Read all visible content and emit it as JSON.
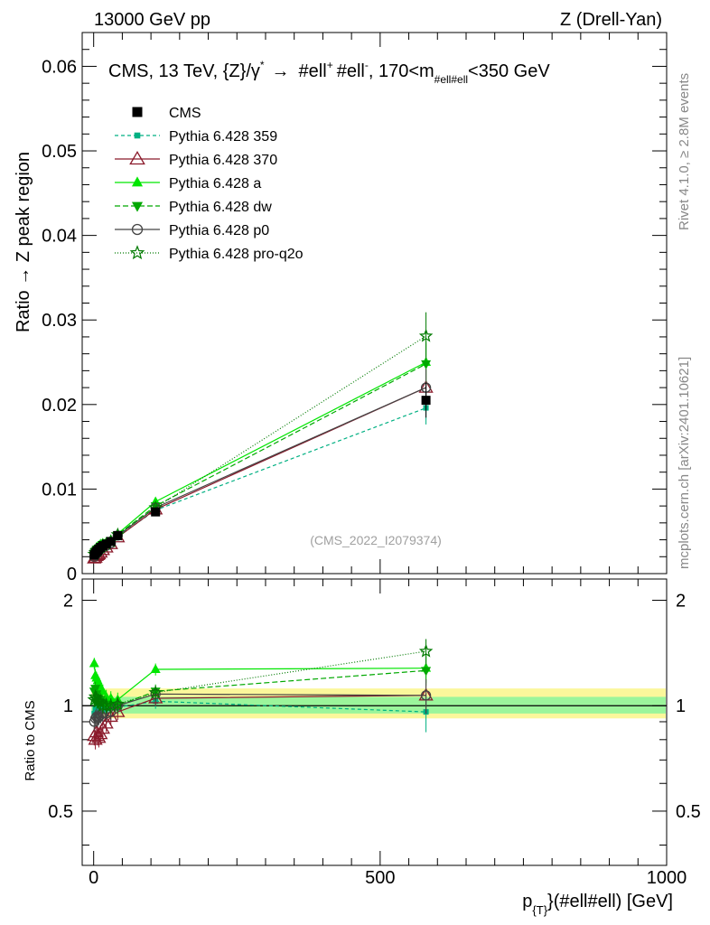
{
  "header": {
    "left": "13000 GeV pp",
    "right": "Z (Drell-Yan)"
  },
  "side_labels": {
    "rivet": "Rivet 4.1.0, ≥ 2.8M events",
    "mcplots": "mcplots.cern.ch [arXiv:2401.10621]"
  },
  "watermark": "(CMS_2022_I2079374)",
  "chart_data": {
    "type": "line",
    "title": "CMS, 13 TeV, {Z}/γ* → #ell⁺ #ell⁻, 170<m_{#ell#ell}<350 GeV",
    "title_parts": {
      "main": "CMS, 13 TeV, {Z}/γ",
      "star": "*",
      "arrow": "→",
      "ell1": "#ell",
      "plus": "+",
      "ell2": "#ell",
      "minus": "-",
      "range1": ", 170<m",
      "sub": "#ell#ell",
      "range2": "<350 GeV"
    },
    "xlabel_parts": {
      "p": "p",
      "sub": "{T}",
      "rest": "}(#ell#ell) [GeV]"
    },
    "xlabel": "p_{T}}(#ell#ell) [GeV]",
    "ylabel": "Ratio → Z peak region",
    "ratio_ylabel": "Ratio to CMS",
    "xlim": [
      -20,
      1000
    ],
    "ylim": [
      0,
      0.064
    ],
    "ratio_ylim": [
      0.35,
      2.3
    ],
    "x_ticks": [
      0,
      500,
      1000
    ],
    "x_tick_labels": [
      "0",
      "500",
      "1000"
    ],
    "y_ticks": [
      0,
      0.01,
      0.02,
      0.03,
      0.04,
      0.05,
      0.06
    ],
    "y_tick_labels": [
      "0",
      "0.01",
      "0.02",
      "0.03",
      "0.04",
      "0.05",
      "0.06"
    ],
    "ratio_ticks": [
      0.5,
      1,
      2
    ],
    "ratio_tick_labels": [
      "0.5",
      "1",
      "2"
    ],
    "legend_position": "top-left",
    "x": [
      1,
      3,
      5,
      7,
      9,
      12,
      16,
      22,
      30,
      42,
      108,
      580
    ],
    "series": [
      {
        "name": "CMS",
        "color": "#000000",
        "marker": "square-filled",
        "dash": "none",
        "values": [
          0.0022,
          0.0024,
          0.0026,
          0.0027,
          0.0029,
          0.0031,
          0.0033,
          0.0035,
          0.0038,
          0.0045,
          0.0073,
          0.0205
        ],
        "ratio": [
          1,
          1,
          1,
          1,
          1,
          1,
          1,
          1,
          1,
          1,
          1,
          1
        ]
      },
      {
        "name": "Pythia 6.428 359",
        "color": "#00b082",
        "marker": "square-small",
        "dash": "4,3",
        "values": [
          0.0021,
          0.0023,
          0.0025,
          0.0026,
          0.0028,
          0.003,
          0.0032,
          0.0034,
          0.0037,
          0.0044,
          0.0075,
          0.0196
        ],
        "ratio": [
          0.95,
          0.98,
          0.97,
          0.96,
          0.97,
          0.98,
          0.97,
          0.98,
          0.99,
          0.99,
          1.03,
          0.96
        ]
      },
      {
        "name": "Pythia 6.428 370",
        "color": "#8b1a2b",
        "marker": "triangle-open",
        "dash": "none",
        "values": [
          0.0018,
          0.0019,
          0.0021,
          0.0022,
          0.0023,
          0.0025,
          0.0028,
          0.0031,
          0.0035,
          0.0043,
          0.0076,
          0.022
        ],
        "ratio": [
          0.82,
          0.8,
          0.84,
          0.82,
          0.81,
          0.83,
          0.86,
          0.89,
          0.93,
          0.96,
          1.05,
          1.07
        ]
      },
      {
        "name": "Pythia 6.428 a",
        "color": "#00e600",
        "marker": "triangle-filled",
        "dash": "none",
        "values": [
          0.0027,
          0.0029,
          0.0031,
          0.0032,
          0.0033,
          0.0035,
          0.0036,
          0.0037,
          0.004,
          0.0047,
          0.0085,
          0.025
        ],
        "ratio": [
          1.32,
          1.22,
          1.2,
          1.18,
          1.15,
          1.13,
          1.1,
          1.06,
          1.05,
          1.04,
          1.27,
          1.28
        ]
      },
      {
        "name": "Pythia 6.428 dw",
        "color": "#00a800",
        "marker": "triangle-down-filled",
        "dash": "6,3",
        "values": [
          0.0024,
          0.0026,
          0.0028,
          0.0029,
          0.003,
          0.0032,
          0.0034,
          0.0036,
          0.0039,
          0.0046,
          0.008,
          0.0248
        ],
        "ratio": [
          1.1,
          1.12,
          1.08,
          1.05,
          1.03,
          1.04,
          1.02,
          1.01,
          1.0,
          1.0,
          1.1,
          1.26
        ]
      },
      {
        "name": "Pythia 6.428 p0",
        "color": "#444444",
        "marker": "circle-open",
        "dash": "none",
        "values": [
          0.002,
          0.0022,
          0.0024,
          0.0025,
          0.0027,
          0.0029,
          0.0031,
          0.0033,
          0.0036,
          0.0045,
          0.0078,
          0.022
        ],
        "ratio": [
          0.9,
          0.92,
          0.93,
          0.92,
          0.93,
          0.94,
          0.95,
          0.95,
          0.96,
          1.0,
          1.08,
          1.07
        ]
      },
      {
        "name": "Pythia 6.428 pro-q2o",
        "color": "#007a00",
        "marker": "star",
        "dash": "1,2",
        "values": [
          0.0023,
          0.0025,
          0.0027,
          0.0028,
          0.003,
          0.0031,
          0.0033,
          0.0035,
          0.0038,
          0.0046,
          0.0078,
          0.0281
        ],
        "ratio": [
          1.04,
          1.06,
          1.05,
          1.03,
          1.03,
          1.02,
          1.0,
          1.0,
          1.0,
          1.01,
          1.09,
          1.43
        ]
      }
    ]
  }
}
